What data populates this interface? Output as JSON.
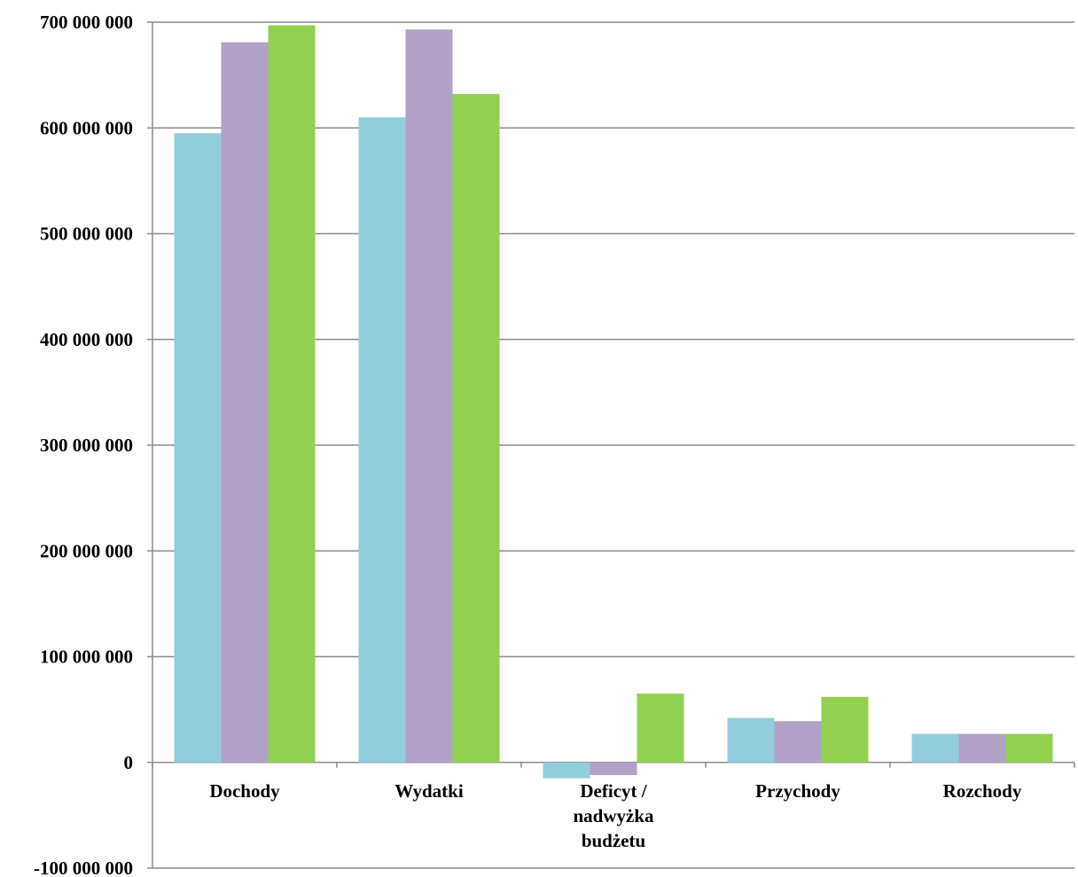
{
  "chart_data": {
    "type": "bar",
    "title": "",
    "xlabel": "",
    "ylabel": "",
    "categories": [
      "Dochody",
      "Wydatki",
      "Deficyt / nadwyżka budżetu",
      "Przychody",
      "Rozchody"
    ],
    "category_label_lines": [
      [
        "Dochody"
      ],
      [
        "Wydatki"
      ],
      [
        "Deficyt /",
        "nadwyżka",
        "budżetu"
      ],
      [
        "Przychody"
      ],
      [
        "Rozchody"
      ]
    ],
    "series": [
      {
        "values": [
          595000000,
          610000000,
          -15000000,
          42000000,
          27000000
        ],
        "color": "#92cddc"
      },
      {
        "values": [
          681000000,
          693000000,
          -12000000,
          39000000,
          27000000
        ],
        "color": "#b2a1c7"
      },
      {
        "values": [
          697000000,
          632000000,
          65000000,
          62000000,
          27000000
        ],
        "color": "#92d050"
      }
    ],
    "ylim": [
      -100000000,
      700000000
    ],
    "yticks": [
      700000000,
      600000000,
      500000000,
      400000000,
      300000000,
      200000000,
      100000000,
      0,
      -100000000
    ],
    "ytick_labels": [
      "700 000 000",
      "600 000 000",
      "500 000 000",
      "400 000 000",
      "300 000 000",
      "200 000 000",
      "100 000 000",
      "0",
      "-100 000 000"
    ],
    "grid": true,
    "legend": "none"
  }
}
